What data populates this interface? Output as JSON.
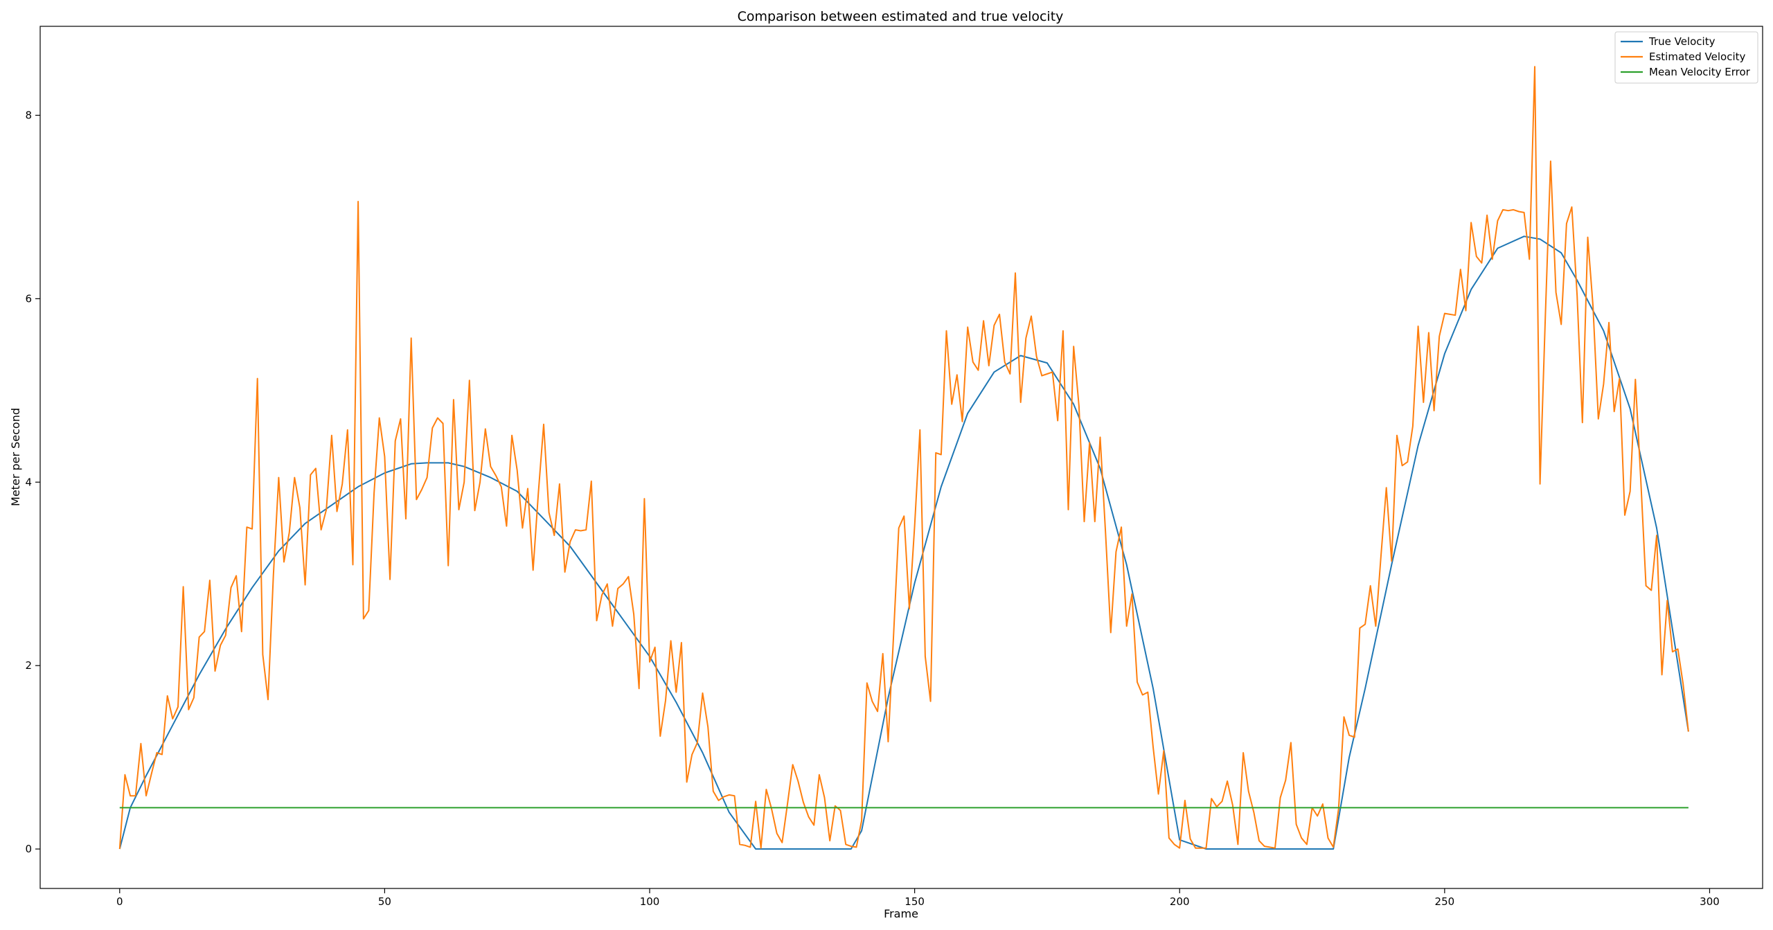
{
  "chart_data": {
    "type": "line",
    "title": "Comparison between estimated and true velocity",
    "xlabel": "Frame",
    "ylabel": "Meter per Second",
    "xlim": [
      -15,
      310
    ],
    "ylim": [
      -0.43,
      8.97
    ],
    "xticks": [
      0,
      50,
      100,
      150,
      200,
      250,
      300
    ],
    "yticks": [
      0,
      2,
      4,
      6,
      8
    ],
    "grid": false,
    "legend_position": "top-right",
    "series": [
      {
        "name": "True Velocity",
        "color": "#1f77b4",
        "x": [
          0,
          2,
          5,
          10,
          15,
          20,
          25,
          30,
          35,
          40,
          45,
          50,
          55,
          58,
          62,
          65,
          70,
          75,
          80,
          85,
          90,
          95,
          100,
          105,
          110,
          115,
          120,
          125,
          130,
          135,
          138,
          140,
          145,
          150,
          155,
          160,
          165,
          170,
          175,
          180,
          185,
          190,
          195,
          200,
          205,
          210,
          215,
          220,
          225,
          229,
          232,
          235,
          240,
          245,
          250,
          255,
          260,
          265,
          268,
          272,
          275,
          280,
          285,
          290,
          296
        ],
        "y": [
          0,
          0.45,
          0.8,
          1.35,
          1.9,
          2.4,
          2.85,
          3.25,
          3.55,
          3.75,
          3.95,
          4.1,
          4.2,
          4.21,
          4.21,
          4.17,
          4.05,
          3.9,
          3.6,
          3.3,
          2.9,
          2.5,
          2.1,
          1.6,
          1.05,
          0.4,
          0,
          0,
          0,
          0,
          0,
          0.2,
          1.65,
          2.9,
          3.95,
          4.75,
          5.2,
          5.38,
          5.3,
          4.85,
          4.15,
          3.1,
          1.75,
          0.1,
          0,
          0,
          0,
          0,
          0,
          0,
          1.0,
          1.75,
          3.1,
          4.4,
          5.4,
          6.1,
          6.55,
          6.68,
          6.65,
          6.5,
          6.2,
          5.65,
          4.8,
          3.5,
          1.28
        ]
      },
      {
        "name": "Estimated Velocity",
        "color": "#ff7f0e",
        "x": [
          0,
          1,
          2,
          3,
          4,
          5,
          6,
          7,
          8,
          9,
          10,
          11,
          12,
          13,
          14,
          15,
          16,
          17,
          18,
          19,
          20,
          21,
          22,
          23,
          24,
          25,
          26,
          27,
          28,
          29,
          30,
          31,
          32,
          33,
          34,
          35,
          36,
          37,
          38,
          39,
          40,
          41,
          42,
          43,
          44,
          45,
          46,
          47,
          48,
          49,
          50,
          51,
          52,
          53,
          54,
          55,
          56,
          57,
          58,
          59,
          60,
          61,
          62,
          63,
          64,
          65,
          66,
          67,
          68,
          69,
          70,
          71,
          72,
          73,
          74,
          75,
          76,
          77,
          78,
          79,
          80,
          81,
          82,
          83,
          84,
          85,
          86,
          87,
          88,
          89,
          90,
          91,
          92,
          93,
          94,
          95,
          96,
          97,
          98,
          99,
          100,
          101,
          102,
          103,
          104,
          105,
          106,
          107,
          108,
          109,
          110,
          111,
          112,
          113,
          114,
          115,
          116,
          117,
          118,
          119,
          120,
          121,
          122,
          123,
          124,
          125,
          126,
          127,
          128,
          129,
          130,
          131,
          132,
          133,
          134,
          135,
          136,
          137,
          138,
          139,
          140,
          141,
          142,
          143,
          144,
          145,
          146,
          147,
          148,
          149,
          150,
          151,
          152,
          153,
          154,
          155,
          156,
          157,
          158,
          159,
          160,
          161,
          162,
          163,
          164,
          165,
          166,
          167,
          168,
          169,
          170,
          171,
          172,
          173,
          174,
          175,
          176,
          177,
          178,
          179,
          180,
          181,
          182,
          183,
          184,
          185,
          186,
          187,
          188,
          189,
          190,
          191,
          192,
          193,
          194,
          195,
          196,
          197,
          198,
          199,
          200,
          201,
          202,
          203,
          204,
          205,
          206,
          207,
          208,
          209,
          210,
          211,
          212,
          213,
          214,
          215,
          216,
          217,
          218,
          219,
          220,
          221,
          222,
          223,
          224,
          225,
          226,
          227,
          228,
          229,
          230,
          231,
          232,
          233,
          234,
          235,
          236,
          237,
          238,
          239,
          240,
          241,
          242,
          243,
          244,
          245,
          246,
          247,
          248,
          249,
          250,
          251,
          252,
          253,
          254,
          255,
          256,
          257,
          258,
          259,
          260,
          261,
          262,
          263,
          264,
          265,
          266,
          267,
          268,
          269,
          270,
          271,
          272,
          273,
          274,
          275,
          276,
          277,
          278,
          279,
          280,
          281,
          282,
          283,
          284,
          285,
          286,
          287,
          288,
          289,
          290,
          291,
          292,
          293,
          294,
          295,
          296
        ],
        "y": [
          0,
          0.81,
          0.58,
          0.58,
          1.15,
          0.58,
          0.82,
          1.05,
          1.03,
          1.67,
          1.42,
          1.55,
          2.86,
          1.52,
          1.65,
          2.31,
          2.37,
          2.93,
          1.94,
          2.22,
          2.33,
          2.85,
          2.98,
          2.37,
          3.51,
          3.49,
          5.13,
          2.12,
          1.63,
          2.98,
          4.05,
          3.13,
          3.45,
          4.05,
          3.72,
          2.88,
          4.08,
          4.15,
          3.48,
          3.7,
          4.51,
          3.68,
          3.98,
          4.57,
          3.1,
          7.06,
          2.51,
          2.6,
          3.88,
          4.7,
          4.28,
          2.94,
          4.45,
          4.69,
          3.6,
          5.57,
          3.81,
          3.92,
          4.05,
          4.59,
          4.7,
          4.64,
          3.09,
          4.9,
          3.7,
          4.0,
          5.11,
          3.69,
          4.0,
          4.58,
          4.17,
          4.07,
          3.95,
          3.52,
          4.51,
          4.13,
          3.5,
          3.93,
          3.04,
          3.88,
          4.63,
          3.67,
          3.42,
          3.98,
          3.02,
          3.35,
          3.48,
          3.47,
          3.48,
          4.01,
          2.49,
          2.77,
          2.89,
          2.43,
          2.84,
          2.89,
          2.97,
          2.56,
          1.75,
          3.82,
          2.04,
          2.2,
          1.23,
          1.62,
          2.27,
          1.71,
          2.25,
          0.73,
          1.03,
          1.16,
          1.7,
          1.33,
          0.63,
          0.53,
          0.57,
          0.59,
          0.58,
          0.05,
          0.04,
          0.02,
          0.52,
          0.01,
          0.65,
          0.44,
          0.17,
          0.07,
          0.49,
          0.92,
          0.74,
          0.51,
          0.35,
          0.26,
          0.81,
          0.56,
          0.09,
          0.47,
          0.42,
          0.05,
          0.03,
          0.02,
          0.31,
          1.81,
          1.61,
          1.5,
          2.13,
          1.17,
          2.3,
          3.5,
          3.63,
          2.62,
          3.52,
          4.57,
          2.1,
          1.61,
          4.32,
          4.3,
          5.65,
          4.85,
          5.17,
          4.66,
          5.69,
          5.31,
          5.22,
          5.76,
          5.27,
          5.71,
          5.83,
          5.31,
          5.18,
          6.28,
          4.87,
          5.57,
          5.81,
          5.37,
          5.16,
          5.18,
          5.2,
          4.67,
          5.65,
          3.7,
          5.48,
          4.83,
          3.57,
          4.43,
          3.57,
          4.49,
          3.47,
          2.36,
          3.24,
          3.51,
          2.43,
          2.78,
          1.82,
          1.68,
          1.71,
          1.11,
          0.6,
          1.07,
          0.12,
          0.05,
          0.01,
          0.53,
          0.11,
          0.01,
          0.01,
          0.01,
          0.55,
          0.46,
          0.52,
          0.74,
          0.48,
          0.05,
          1.05,
          0.63,
          0.4,
          0.09,
          0.03,
          0.02,
          0.01,
          0.56,
          0.75,
          1.16,
          0.27,
          0.12,
          0.05,
          0.45,
          0.36,
          0.49,
          0.12,
          0.02,
          0.44,
          1.44,
          1.24,
          1.22,
          2.41,
          2.45,
          2.87,
          2.43,
          3.2,
          3.94,
          3.14,
          4.51,
          4.18,
          4.22,
          4.61,
          5.7,
          4.87,
          5.63,
          4.78,
          5.59,
          5.84,
          5.83,
          5.82,
          6.32,
          5.87,
          6.83,
          6.46,
          6.39,
          6.91,
          6.43,
          6.85,
          6.97,
          6.96,
          6.97,
          6.95,
          6.94,
          6.43,
          8.53,
          3.98,
          5.81,
          7.5,
          6.07,
          5.72,
          6.82,
          7.0,
          6.03,
          4.65,
          6.67,
          5.92,
          4.69,
          5.07,
          5.74,
          4.77,
          5.13,
          3.64,
          3.9,
          5.12,
          4.04,
          2.87,
          2.82,
          3.42,
          1.9,
          2.71,
          2.15,
          2.18,
          1.8,
          1.28
        ]
      },
      {
        "name": "Mean Velocity Error",
        "color": "#2ca02c",
        "x": [
          0,
          296
        ],
        "y": [
          0.45,
          0.45
        ]
      }
    ]
  }
}
